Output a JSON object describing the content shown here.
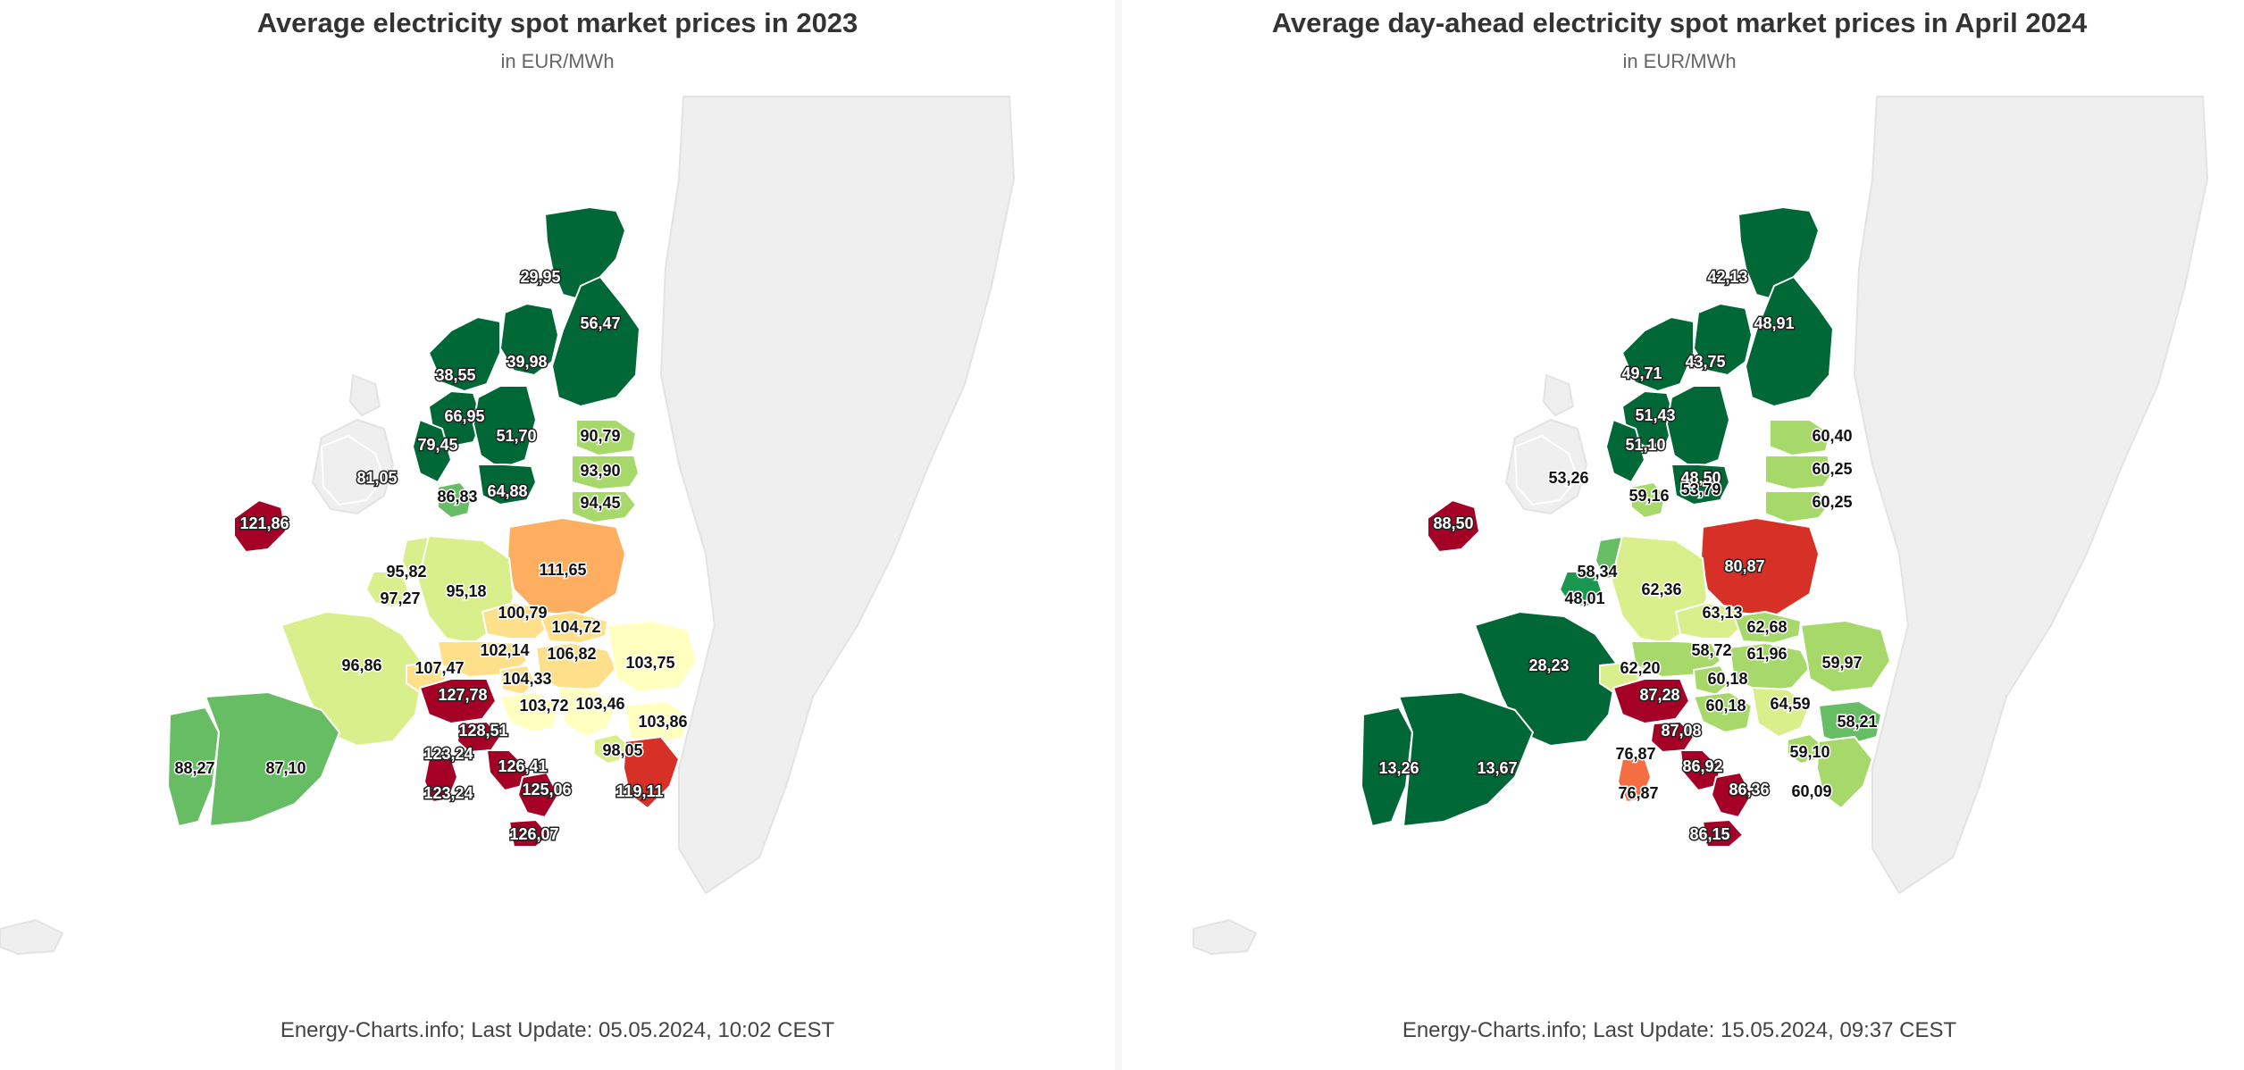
{
  "panels": [
    {
      "title": "Average electricity spot market prices in 2023",
      "subtitle": "in EUR/MWh",
      "credits": "Energy-Charts.info; Last Update: 05.05.2024, 10:02 CEST",
      "map_data": {
        "type": "choropleth",
        "unit": "EUR/MWh",
        "regions": [
          {
            "name": "SE1",
            "value": "29,95",
            "color": "#006837"
          },
          {
            "name": "FI",
            "value": "56,47",
            "color": "#006837"
          },
          {
            "name": "SE2",
            "value": "39,98",
            "color": "#006837"
          },
          {
            "name": "NO3",
            "value": "38,55",
            "color": "#006837"
          },
          {
            "name": "NO1",
            "value": "66,95",
            "color": "#006837"
          },
          {
            "name": "NO5",
            "value": "79,45",
            "color": "#006837"
          },
          {
            "name": "SE3",
            "value": "51,70",
            "color": "#006837"
          },
          {
            "name": "SE4",
            "value": "64,88",
            "color": "#006837"
          },
          {
            "name": "DK1",
            "value": "86,83",
            "color": "#66bd63"
          },
          {
            "name": "GB",
            "value": "81,05",
            "color": "#efefef"
          },
          {
            "name": "EE",
            "value": "90,79",
            "color": "#a6d96a"
          },
          {
            "name": "LV",
            "value": "93,90",
            "color": "#a6d96a"
          },
          {
            "name": "LT",
            "value": "94,45",
            "color": "#a6d96a"
          },
          {
            "name": "IE",
            "value": "121,86",
            "color": "#a50026"
          },
          {
            "name": "PL",
            "value": "111,65",
            "color": "#fdae61"
          },
          {
            "name": "NL",
            "value": "95,82",
            "color": "#d9ef8b"
          },
          {
            "name": "BE",
            "value": "97,27",
            "color": "#d9ef8b"
          },
          {
            "name": "DE-LU",
            "value": "95,18",
            "color": "#d9ef8b"
          },
          {
            "name": "CZ",
            "value": "100,79",
            "color": "#fee08b"
          },
          {
            "name": "SK",
            "value": "104,72",
            "color": "#fee08b"
          },
          {
            "name": "AT",
            "value": "102,14",
            "color": "#fee08b"
          },
          {
            "name": "HU",
            "value": "106,82",
            "color": "#fee08b"
          },
          {
            "name": "RO",
            "value": "103,75",
            "color": "#ffffbf"
          },
          {
            "name": "SI",
            "value": "104,33",
            "color": "#fee08b"
          },
          {
            "name": "FR",
            "value": "96,86",
            "color": "#d9ef8b"
          },
          {
            "name": "CH",
            "value": "107,47",
            "color": "#fee08b"
          },
          {
            "name": "IT-NORD",
            "value": "127,78",
            "color": "#a50026"
          },
          {
            "name": "HR",
            "value": "103,72",
            "color": "#ffffbf"
          },
          {
            "name": "RS",
            "value": "103,46",
            "color": "#ffffbf"
          },
          {
            "name": "BG",
            "value": "103,86",
            "color": "#ffffbf"
          },
          {
            "name": "IT-CNOR",
            "value": "128,51",
            "color": "#a50026"
          },
          {
            "name": "IT-SARD",
            "value": "123,24",
            "color": "#a50026"
          },
          {
            "name": "IT-CSUD",
            "value": "126,41",
            "color": "#a50026"
          },
          {
            "name": "ME",
            "value": "98,05",
            "color": "#d9ef8b"
          },
          {
            "name": "GR",
            "value": "119,11",
            "color": "#d73027"
          },
          {
            "name": "PT",
            "value": "88,27",
            "color": "#66bd63"
          },
          {
            "name": "ES",
            "value": "87,10",
            "color": "#66bd63"
          },
          {
            "name": "IT-SARD-LBL",
            "value": "123,24",
            "color": "#a50026"
          },
          {
            "name": "IT-SUD",
            "value": "125,06",
            "color": "#a50026"
          },
          {
            "name": "IT-SICI",
            "value": "126,07",
            "color": "#a50026"
          }
        ]
      }
    },
    {
      "title": "Average day-ahead electricity spot market prices in April 2024",
      "subtitle": "in EUR/MWh",
      "credits": "Energy-Charts.info; Last Update: 15.05.2024, 09:37 CEST",
      "map_data": {
        "type": "choropleth",
        "unit": "EUR/MWh",
        "regions": [
          {
            "name": "SE1",
            "value": "42,13",
            "color": "#006837"
          },
          {
            "name": "FI",
            "value": "48,91",
            "color": "#006837"
          },
          {
            "name": "NO3",
            "value": "49,71",
            "color": "#006837"
          },
          {
            "name": "SE2",
            "value": "43,75",
            "color": "#006837"
          },
          {
            "name": "NO1",
            "value": "51,43",
            "color": "#006837"
          },
          {
            "name": "NO5",
            "value": "51,10",
            "color": "#006837"
          },
          {
            "name": "SE3",
            "value": "48,50",
            "color": "#006837"
          },
          {
            "name": "EE",
            "value": "60,40",
            "color": "#a6d96a"
          },
          {
            "name": "LV",
            "value": "60,25",
            "color": "#a6d96a"
          },
          {
            "name": "LT",
            "value": "60,25",
            "color": "#a6d96a"
          },
          {
            "name": "GB",
            "value": "53,26",
            "color": "#efefef"
          },
          {
            "name": "DK1",
            "value": "59,16",
            "color": "#a6d96a"
          },
          {
            "name": "SE4",
            "value": "53,79",
            "color": "#006837"
          },
          {
            "name": "IE",
            "value": "88,50",
            "color": "#a50026"
          },
          {
            "name": "PL",
            "value": "80,87",
            "color": "#d73027"
          },
          {
            "name": "NL",
            "value": "58,34",
            "color": "#66bd63"
          },
          {
            "name": "BE",
            "value": "48,01",
            "color": "#1a9850"
          },
          {
            "name": "DE-LU",
            "value": "62,36",
            "color": "#d9ef8b"
          },
          {
            "name": "CZ",
            "value": "63,13",
            "color": "#d9ef8b"
          },
          {
            "name": "SK",
            "value": "62,68",
            "color": "#a6d96a"
          },
          {
            "name": "HU",
            "value": "61,96",
            "color": "#a6d96a"
          },
          {
            "name": "FR",
            "value": "28,23",
            "color": "#006837"
          },
          {
            "name": "AT",
            "value": "58,72",
            "color": "#a6d96a"
          },
          {
            "name": "RO",
            "value": "59,97",
            "color": "#a6d96a"
          },
          {
            "name": "CH",
            "value": "62,20",
            "color": "#d9ef8b"
          },
          {
            "name": "SI",
            "value": "60,18",
            "color": "#a6d96a"
          },
          {
            "name": "IT-NORD",
            "value": "87,28",
            "color": "#a50026"
          },
          {
            "name": "HR",
            "value": "60,18",
            "color": "#a6d96a"
          },
          {
            "name": "RS",
            "value": "64,59",
            "color": "#d9ef8b"
          },
          {
            "name": "BG",
            "value": "58,21",
            "color": "#66bd63"
          },
          {
            "name": "IT-CNOR",
            "value": "87,08",
            "color": "#a50026"
          },
          {
            "name": "PT",
            "value": "13,26",
            "color": "#006837"
          },
          {
            "name": "ES",
            "value": "13,67",
            "color": "#006837"
          },
          {
            "name": "IT-SARD",
            "value": "76,87",
            "color": "#f46d43"
          },
          {
            "name": "IT-CSUD",
            "value": "86,92",
            "color": "#a50026"
          },
          {
            "name": "ME",
            "value": "59,10",
            "color": "#a6d96a"
          },
          {
            "name": "IT-SARD-LBL",
            "value": "76,87",
            "color": "#f46d43"
          },
          {
            "name": "IT-SUD",
            "value": "86,36",
            "color": "#a50026"
          },
          {
            "name": "GR",
            "value": "60,09",
            "color": "#a6d96a"
          },
          {
            "name": "IT-SICI",
            "value": "86,15",
            "color": "#a50026"
          }
        ]
      }
    }
  ]
}
